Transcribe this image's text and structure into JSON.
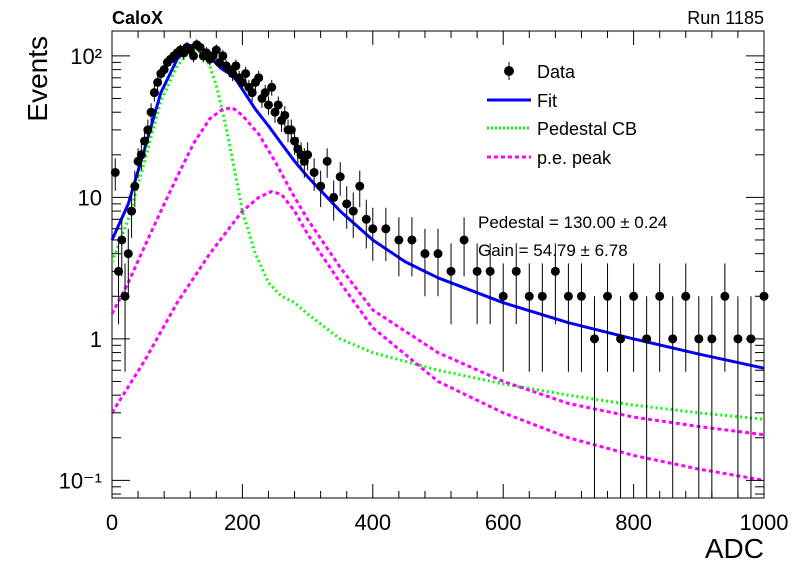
{
  "header": {
    "experiment": "CaloX",
    "run": "Run 1185"
  },
  "stats": {
    "pedestal": "Pedestal = 130.00 ± 0.24",
    "gain": "Gain = 54.79 ± 6.78"
  },
  "colors": {
    "data": "#000000",
    "fit": "#0000ff",
    "pedestal": "#00ff00",
    "pe": "#ff00ff"
  },
  "chart_data": {
    "type": "scatter",
    "title": "",
    "xlabel": "ADC",
    "ylabel": "Events",
    "xlim": [
      0,
      1000
    ],
    "ylim": [
      0.075,
      150
    ],
    "yscale": "log",
    "x_ticks": [
      0,
      200,
      400,
      600,
      800,
      1000
    ],
    "x_tick_labels": [
      "0",
      "200",
      "400",
      "600",
      "800",
      "1000"
    ],
    "y_ticks": [
      0.1,
      1,
      10,
      100
    ],
    "y_tick_labels": [
      "10⁻¹",
      "1",
      "10",
      "10²"
    ],
    "legend": {
      "placement": "top-right",
      "entries": [
        "Data",
        "Fit",
        "Pedestal CB",
        "p.e. peak"
      ]
    },
    "series": [
      {
        "name": "Data",
        "style": "markers-with-errors",
        "x": [
          5,
          10,
          15,
          20,
          25,
          30,
          35,
          40,
          45,
          50,
          55,
          60,
          65,
          70,
          75,
          80,
          85,
          90,
          95,
          100,
          105,
          110,
          115,
          120,
          125,
          130,
          135,
          140,
          145,
          150,
          155,
          160,
          165,
          170,
          175,
          180,
          185,
          190,
          195,
          200,
          205,
          210,
          215,
          220,
          225,
          230,
          235,
          240,
          245,
          250,
          255,
          260,
          265,
          270,
          275,
          280,
          285,
          290,
          295,
          300,
          310,
          320,
          330,
          340,
          350,
          360,
          370,
          380,
          390,
          400,
          420,
          440,
          460,
          480,
          500,
          520,
          540,
          560,
          580,
          600,
          620,
          640,
          660,
          680,
          700,
          720,
          740,
          760,
          780,
          800,
          820,
          840,
          860,
          880,
          900,
          920,
          940,
          960,
          980,
          1000
        ],
        "y": [
          15,
          3,
          5,
          2,
          4,
          8,
          12,
          18,
          20,
          25,
          30,
          40,
          55,
          65,
          75,
          80,
          90,
          95,
          100,
          105,
          110,
          105,
          115,
          110,
          100,
          120,
          115,
          100,
          105,
          95,
          100,
          110,
          90,
          100,
          85,
          80,
          75,
          85,
          70,
          65,
          75,
          60,
          55,
          65,
          70,
          50,
          55,
          45,
          60,
          40,
          45,
          35,
          38,
          30,
          30,
          25,
          22,
          20,
          18,
          20,
          15,
          12,
          18,
          10,
          14,
          9,
          8,
          12,
          7,
          6,
          6,
          5,
          5,
          4,
          4,
          3,
          5,
          3,
          3,
          2,
          3,
          2,
          2,
          3,
          2,
          2,
          1,
          2,
          1,
          2,
          1,
          2,
          1,
          2,
          1,
          1,
          2,
          1,
          1,
          2
        ]
      },
      {
        "name": "Fit",
        "x": [
          0,
          25,
          50,
          75,
          100,
          120,
          130,
          140,
          150,
          160,
          170,
          180,
          190,
          200,
          220,
          240,
          260,
          280,
          300,
          350,
          400,
          450,
          500,
          600,
          700,
          800,
          900,
          1000
        ],
        "y": [
          5,
          9,
          22,
          55,
          95,
          118,
          120,
          112,
          100,
          88,
          80,
          75,
          68,
          58,
          42,
          32,
          24,
          18,
          14,
          8,
          5,
          3.5,
          2.7,
          1.8,
          1.3,
          1.0,
          0.78,
          0.62
        ]
      },
      {
        "name": "Pedestal CB",
        "x": [
          0,
          25,
          50,
          75,
          100,
          120,
          130,
          140,
          150,
          160,
          170,
          180,
          190,
          200,
          220,
          240,
          260,
          280,
          300,
          350,
          400,
          500,
          600,
          700,
          800,
          900,
          1000
        ],
        "y": [
          3.5,
          7,
          18,
          48,
          85,
          108,
          110,
          102,
          85,
          62,
          40,
          24,
          14,
          8,
          4,
          2.5,
          2,
          1.8,
          1.5,
          1.0,
          0.8,
          0.6,
          0.48,
          0.4,
          0.34,
          0.3,
          0.27
        ]
      },
      {
        "name": "p.e. peak",
        "x": [
          0,
          25,
          50,
          75,
          100,
          125,
          150,
          170,
          185,
          200,
          225,
          250,
          275,
          300,
          350,
          400,
          500,
          600,
          700,
          800,
          900,
          1000
        ],
        "y": [
          1.5,
          2.5,
          4.5,
          8,
          14,
          24,
          36,
          42,
          43,
          38,
          28,
          18,
          11,
          7,
          3.2,
          1.6,
          0.8,
          0.5,
          0.35,
          0.28,
          0.24,
          0.21
        ]
      },
      {
        "name": "p.e. peak",
        "x": [
          0,
          50,
          100,
          150,
          200,
          225,
          245,
          260,
          280,
          300,
          350,
          400,
          500,
          600,
          700,
          800,
          900,
          1000
        ],
        "y": [
          0.3,
          0.7,
          1.8,
          4,
          8,
          10,
          11,
          10.5,
          8,
          5.5,
          2.5,
          1.2,
          0.5,
          0.3,
          0.2,
          0.15,
          0.12,
          0.1
        ]
      }
    ]
  }
}
